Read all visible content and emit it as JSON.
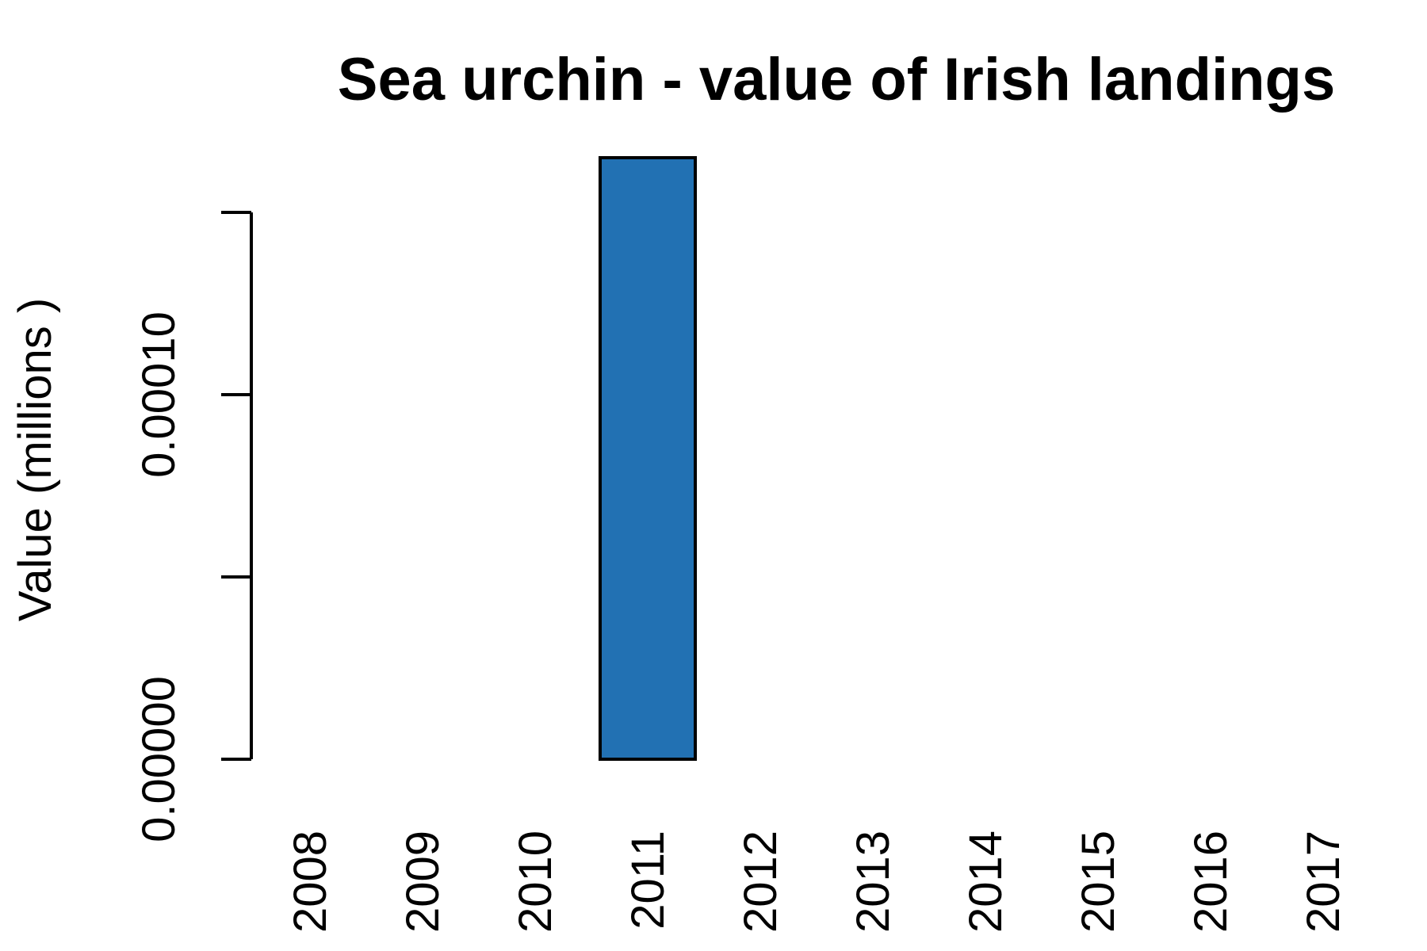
{
  "chart_data": {
    "type": "bar",
    "title": "Sea urchin - value of Irish landings",
    "xlabel": "",
    "ylabel": "Value (millions )",
    "categories": [
      "2008",
      "2009",
      "2010",
      "2011",
      "2012",
      "2013",
      "2014",
      "2015",
      "2016",
      "2017"
    ],
    "values": [
      0,
      0,
      0,
      0.000165,
      0,
      0,
      0,
      0,
      0,
      0
    ],
    "ylim": [
      0,
      0.00015
    ],
    "yticks": [
      0,
      5e-05,
      0.0001,
      0.00015
    ],
    "ytick_labels": [
      "0.00000",
      "",
      "0.00010",
      ""
    ],
    "bar_color": "#2271B3",
    "grid": false,
    "legend": "none"
  }
}
